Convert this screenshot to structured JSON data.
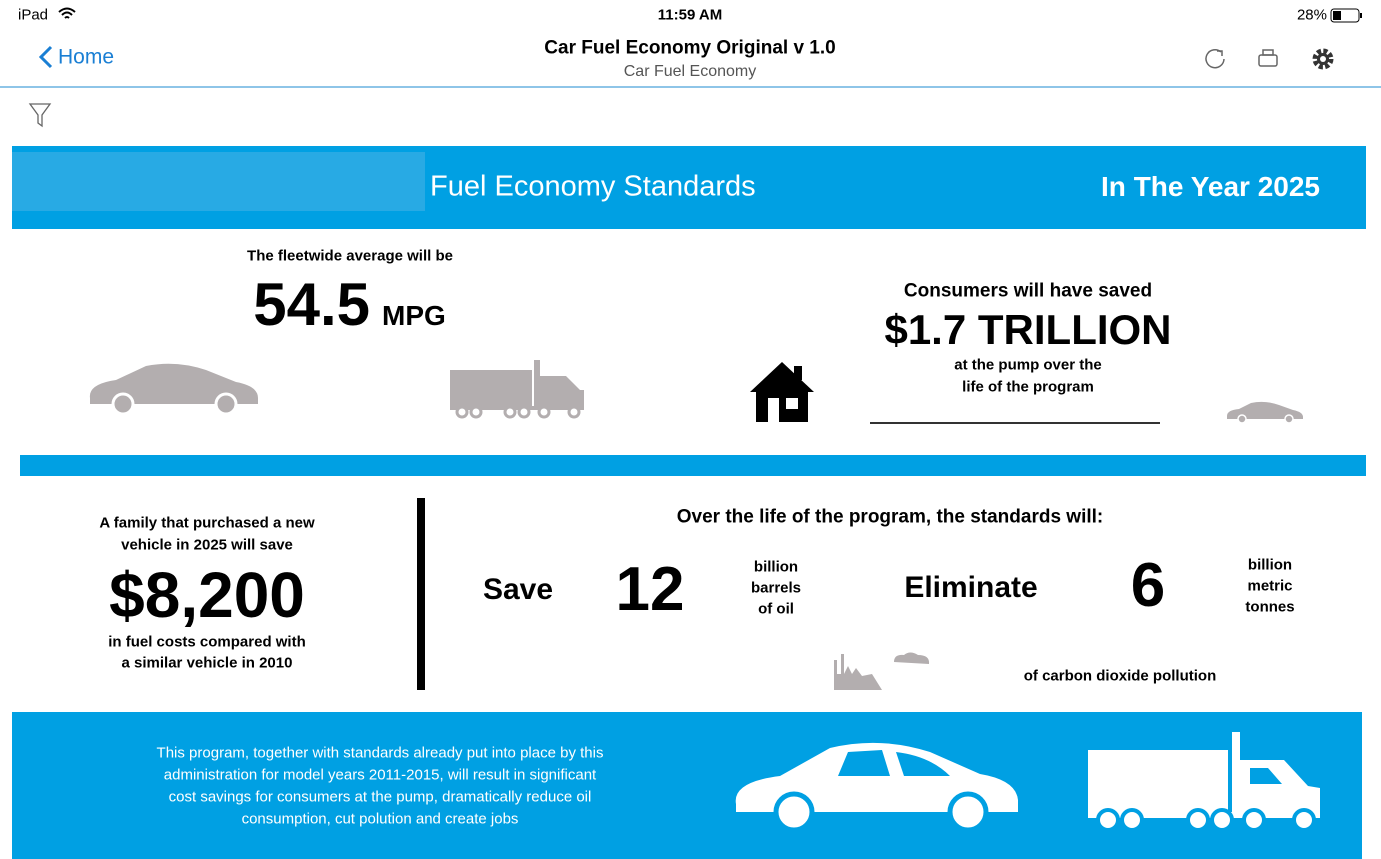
{
  "status_bar": {
    "device": "iPad",
    "time": "11:59 AM",
    "battery": "28%"
  },
  "nav": {
    "back": "Home",
    "title": "Car Fuel Economy Original v 1.0",
    "subtitle": "Car Fuel Economy"
  },
  "banner": {
    "title": "Fuel Economy Standards",
    "year": "In The Year 2025"
  },
  "fleet": {
    "lead": "The fleetwide average will be",
    "value": "54.5",
    "unit": "MPG"
  },
  "savings": {
    "lead": "Consumers will have saved",
    "value": "$1.7 TRILLION",
    "note": [
      "at the pump over the",
      "life of the program"
    ]
  },
  "family": {
    "lead": [
      "A family that purchased a new",
      "vehicle in 2025 will save"
    ],
    "value": "$8,200",
    "tail": [
      "in fuel costs compared with",
      "a similar vehicle in 2010"
    ]
  },
  "program": {
    "heading": "Over the life of the program, the standards will:",
    "save": {
      "verb": "Save",
      "number": "12",
      "unit": [
        "billion",
        "barrels",
        "of oil"
      ]
    },
    "eliminate": {
      "verb": "Eliminate",
      "number": "6",
      "unit": [
        "billion",
        "metric",
        "tonnes"
      ],
      "tail": "of carbon dioxide pollution"
    }
  },
  "footer": {
    "text": [
      "This program, together with standards already put into place by this",
      "administration for model years 2011-2015, will result in significant",
      "cost savings for consumers at the pump, dramatically reduce oil",
      "consumption, cut polution and create jobs"
    ]
  }
}
